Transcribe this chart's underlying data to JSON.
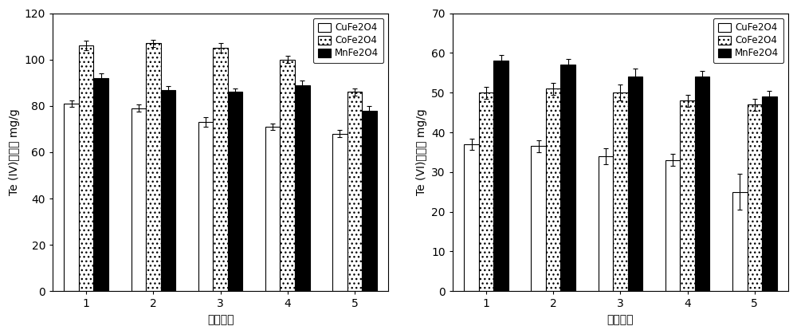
{
  "left_chart": {
    "ylabel": "Te (IV)吸附量 mg/g",
    "xlabel": "循环次数",
    "ylim": [
      0,
      120
    ],
    "yticks": [
      0,
      20,
      40,
      60,
      80,
      100,
      120
    ],
    "categories": [
      1,
      2,
      3,
      4,
      5
    ],
    "CuFe2O4": [
      81,
      79,
      73,
      71,
      68
    ],
    "CoFe2O4": [
      106,
      107,
      105,
      100,
      86
    ],
    "MnFe2O4": [
      92,
      87,
      86,
      89,
      78
    ],
    "CuFe2O4_err": [
      1.5,
      1.5,
      2.0,
      1.5,
      1.5
    ],
    "CoFe2O4_err": [
      2.0,
      1.5,
      2.0,
      1.5,
      1.5
    ],
    "MnFe2O4_err": [
      2.0,
      1.5,
      1.5,
      2.0,
      2.0
    ]
  },
  "right_chart": {
    "ylabel": "Te (VI)吸附量 mg/g",
    "xlabel": "循环次数",
    "ylim": [
      0,
      70
    ],
    "yticks": [
      0,
      10,
      20,
      30,
      40,
      50,
      60,
      70
    ],
    "categories": [
      1,
      2,
      3,
      4,
      5
    ],
    "CuFe2O4": [
      37,
      36.5,
      34,
      33,
      25
    ],
    "CoFe2O4": [
      50,
      51,
      50,
      48,
      47
    ],
    "MnFe2O4": [
      58,
      57,
      54,
      54,
      49
    ],
    "CuFe2O4_err": [
      1.5,
      1.5,
      2.0,
      1.5,
      4.5
    ],
    "CoFe2O4_err": [
      1.5,
      1.5,
      2.0,
      1.5,
      1.5
    ],
    "MnFe2O4_err": [
      1.5,
      1.5,
      2.0,
      1.5,
      1.5
    ]
  },
  "legend_labels": [
    "CuFe2O4",
    "CoFe2O4",
    "MnFe2O4"
  ],
  "bar_colors": [
    "white",
    "white",
    "black"
  ],
  "bar_edgecolors": [
    "black",
    "black",
    "black"
  ],
  "bar_width": 0.22,
  "font_size": 10,
  "tick_font_size": 10
}
